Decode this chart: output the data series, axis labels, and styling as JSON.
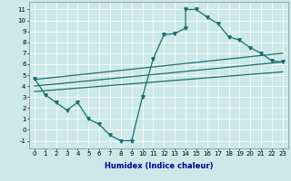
{
  "title": "",
  "xlabel": "Humidex (Indice chaleur)",
  "ylabel": "",
  "xlim": [
    -0.5,
    23.5
  ],
  "ylim": [
    -1.7,
    11.7
  ],
  "xticks": [
    0,
    1,
    2,
    3,
    4,
    5,
    6,
    7,
    8,
    9,
    10,
    11,
    12,
    13,
    14,
    15,
    16,
    17,
    18,
    19,
    20,
    21,
    22,
    23
  ],
  "yticks": [
    -1,
    0,
    1,
    2,
    3,
    4,
    5,
    6,
    7,
    8,
    9,
    10,
    11
  ],
  "bg_color": "#cce8e8",
  "line_color": "#1a6e6e",
  "line1_x": [
    0,
    1,
    2,
    3,
    4,
    5,
    6,
    7,
    8,
    9,
    10,
    11,
    12,
    13,
    14,
    14,
    15,
    16,
    17,
    18,
    19,
    20,
    21,
    22,
    23
  ],
  "line1_y": [
    4.7,
    3.2,
    2.5,
    1.8,
    2.5,
    1.0,
    0.5,
    -0.5,
    -1.0,
    -1.0,
    3.0,
    6.5,
    8.7,
    8.8,
    9.3,
    11.0,
    11.0,
    10.3,
    9.7,
    8.5,
    8.2,
    7.5,
    7.0,
    6.3,
    6.2
  ],
  "line2_x": [
    0,
    23
  ],
  "line2_y": [
    3.5,
    5.3
  ],
  "line3_x": [
    0,
    23
  ],
  "line3_y": [
    4.0,
    6.2
  ],
  "line4_x": [
    0,
    23
  ],
  "line4_y": [
    4.6,
    7.0
  ],
  "tick_fontsize": 5,
  "xlabel_fontsize": 6,
  "xlabel_color": "#00008b",
  "xlabel_bold": true
}
